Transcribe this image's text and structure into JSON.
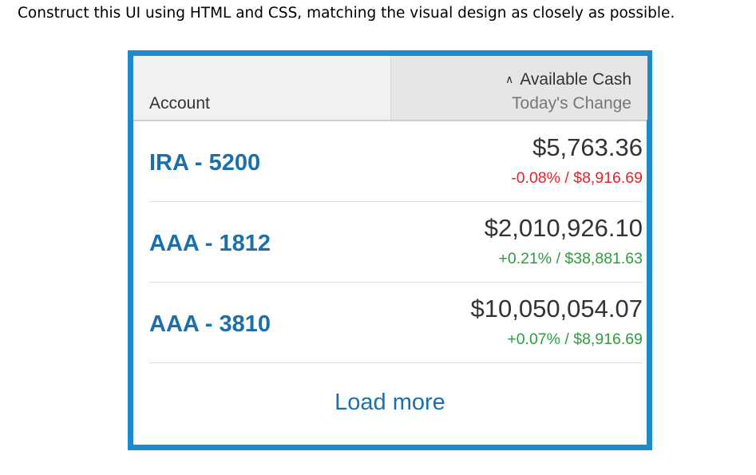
{
  "instruction": "Construct this UI using HTML and CSS, matching the visual design as closely as possible.",
  "header": {
    "account_label": "Account",
    "sort_indicator": "∧",
    "cash_label": "Available Cash",
    "change_label": "Today's Change"
  },
  "accounts": [
    {
      "name": "IRA - 5200",
      "amount": "$5,763.36",
      "change": "-0.08% / $8,916.69",
      "direction": "negative"
    },
    {
      "name": "AAA - 1812",
      "amount": "$2,010,926.10",
      "change": "+0.21% / $38,881.63",
      "direction": "positive"
    },
    {
      "name": "AAA - 3810",
      "amount": "$10,050,054.07",
      "change": "+0.07% / $8,916.69",
      "direction": "positive"
    }
  ],
  "load_more_label": "Load more",
  "colors": {
    "frame": "#1c8acb",
    "link": "#1b6fab",
    "negative": "#e5222d",
    "positive": "#2e9c3f"
  }
}
